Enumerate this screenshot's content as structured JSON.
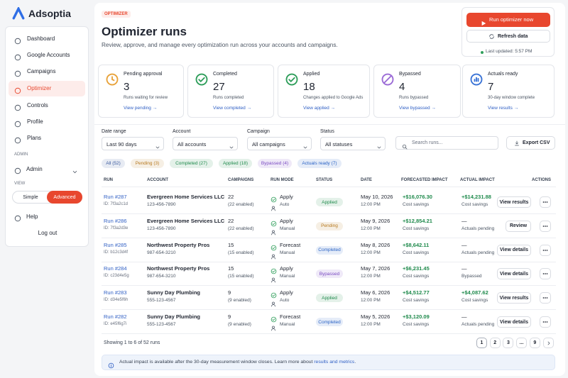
{
  "brand": "Adsoptia",
  "nav": [
    "Dashboard",
    "Google Accounts",
    "Campaigns",
    "Optimizer",
    "Controls",
    "Profile",
    "Plans"
  ],
  "sidebar": {
    "admin_label": "ADMIN",
    "admin": "Admin",
    "view_label": "VIEW",
    "view_options": [
      "Simple",
      "Advanced"
    ],
    "help": "Help",
    "logout": "Log out"
  },
  "header": {
    "badge": "OPTIMIZER",
    "title": "Optimizer runs",
    "subtitle": "Review, approve, and manage every optimization run across your accounts and campaigns."
  },
  "actions": {
    "run": "Run optimizer now",
    "refresh": "Refresh data",
    "last_updated": "Last updated: 5:57 PM"
  },
  "stats": [
    {
      "label": "Pending approval",
      "value": "3",
      "caption": "Runs waiting for review",
      "link": "View pending →",
      "color": "#e8a23a"
    },
    {
      "label": "Completed",
      "value": "27",
      "caption": "Runs completed",
      "link": "View completed →",
      "color": "#2f9e5b"
    },
    {
      "label": "Applied",
      "value": "18",
      "caption": "Changes applied to Google Ads",
      "link": "View applied →",
      "color": "#2f9e5b"
    },
    {
      "label": "Bypassed",
      "value": "4",
      "caption": "Runs bypassed",
      "link": "View bypassed →",
      "color": "#9b6bd6"
    },
    {
      "label": "Actuals ready",
      "value": "7",
      "caption": "30-day window complete",
      "link": "View results →",
      "color": "#3a73d6"
    }
  ],
  "filters": [
    {
      "label": "Date range",
      "value": "Last 90 days"
    },
    {
      "label": "Account",
      "value": "All accounts"
    },
    {
      "label": "Campaign",
      "value": "All campaigns"
    },
    {
      "label": "Status",
      "value": "All statuses"
    }
  ],
  "search": "Search runs...",
  "export": "Export CSV",
  "chips": [
    {
      "text": "All (52)",
      "color": "#3a5a9e"
    },
    {
      "text": "Pending (3)",
      "color": "#b7791f"
    },
    {
      "text": "Completed (27)",
      "color": "#1f8a4c"
    },
    {
      "text": "Applied (18)",
      "color": "#1f8a4c"
    },
    {
      "text": "Bypassed (4)",
      "color": "#7a4bc2"
    },
    {
      "text": "Actuals ready (7)",
      "color": "#2b63c5"
    }
  ],
  "table": {
    "columns": [
      "RUN",
      "ACCOUNT",
      "CAMPAIGNS",
      "RUN MODE",
      "STATUS",
      "DATE",
      "FORECASTED IMPACT",
      "ACTUAL IMPACT",
      "ACTIONS"
    ],
    "rows": [
      {
        "run": "Run #287",
        "id": "ID: 7f3a2c1d",
        "account": "Evergreen Home Services LLC",
        "phone": "123-456-7890",
        "campaigns": "22",
        "enabled": "(22 enabled)",
        "mode": "Apply",
        "mode_sub": "Auto",
        "status": "Applied",
        "status_color": "#1f8a4c",
        "date": "May 10, 2026",
        "time": "12:00 PM",
        "forecast": "+$16,076.30",
        "forecast_sub": "Cost savings",
        "actual": "+$14,231.88",
        "actual_sub": "Cost savings",
        "action": "View results"
      },
      {
        "run": "Run #286",
        "id": "ID: 7f3a2d3e",
        "account": "Evergreen Home Services LLC",
        "phone": "123-456-7890",
        "campaigns": "22",
        "enabled": "(22 enabled)",
        "mode": "Apply",
        "mode_sub": "Manual",
        "status": "Pending",
        "status_color": "#b7791f",
        "date": "May 9, 2026",
        "time": "12:00 PM",
        "forecast": "+$12,854.21",
        "forecast_sub": "Cost savings",
        "actual": "—",
        "actual_sub": "Actuals pending",
        "action": "Review"
      },
      {
        "run": "Run #285",
        "id": "ID: b12c3d4f",
        "account": "Northwest Property Pros",
        "phone": "987-654-3210",
        "campaigns": "15",
        "enabled": "(15 enabled)",
        "mode": "Forecast",
        "mode_sub": "Manual",
        "status": "Completed",
        "status_color": "#2b63c5",
        "date": "May 8, 2026",
        "time": "12:00 PM",
        "forecast": "+$8,642.11",
        "forecast_sub": "Cost savings",
        "actual": "—",
        "actual_sub": "Actuals pending",
        "action": "View details"
      },
      {
        "run": "Run #284",
        "id": "ID: c23d4e5g",
        "account": "Northwest Property Pros",
        "phone": "987-654-3210",
        "campaigns": "15",
        "enabled": "(15 enabled)",
        "mode": "Apply",
        "mode_sub": "Manual",
        "status": "Bypassed",
        "status_color": "#7a4bc2",
        "date": "May 7, 2026",
        "time": "12:00 PM",
        "forecast": "+$6,231.45",
        "forecast_sub": "Cost savings",
        "actual": "—",
        "actual_sub": "Bypassed",
        "action": "View details"
      },
      {
        "run": "Run #283",
        "id": "ID: d34e5f6h",
        "account": "Sunny Day Plumbing",
        "phone": "555-123-4567",
        "campaigns": "9",
        "enabled": "(9 enabled)",
        "mode": "Apply",
        "mode_sub": "Auto",
        "status": "Applied",
        "status_color": "#1f8a4c",
        "date": "May 6, 2026",
        "time": "12:00 PM",
        "forecast": "+$4,512.77",
        "forecast_sub": "Cost savings",
        "actual": "+$4,087.62",
        "actual_sub": "Cost savings",
        "action": "View results"
      },
      {
        "run": "Run #282",
        "id": "ID: e45f6g7i",
        "account": "Sunny Day Plumbing",
        "phone": "555-123-4567",
        "campaigns": "9",
        "enabled": "(9 enabled)",
        "mode": "Forecast",
        "mode_sub": "Manual",
        "status": "Completed",
        "status_color": "#2b63c5",
        "date": "May 5, 2026",
        "time": "12:00 PM",
        "forecast": "+$3,120.09",
        "forecast_sub": "Cost savings",
        "actual": "—",
        "actual_sub": "Actuals pending",
        "action": "View details"
      }
    ]
  },
  "footer": {
    "showing": "Showing 1 to 6 of 52 runs",
    "pages": [
      "1",
      "2",
      "3",
      "...",
      "9"
    ]
  },
  "notice": {
    "text": "Actual impact is available after the 30-day measurement window closes. Learn more about ",
    "link": "results and metrics",
    "end": "."
  }
}
